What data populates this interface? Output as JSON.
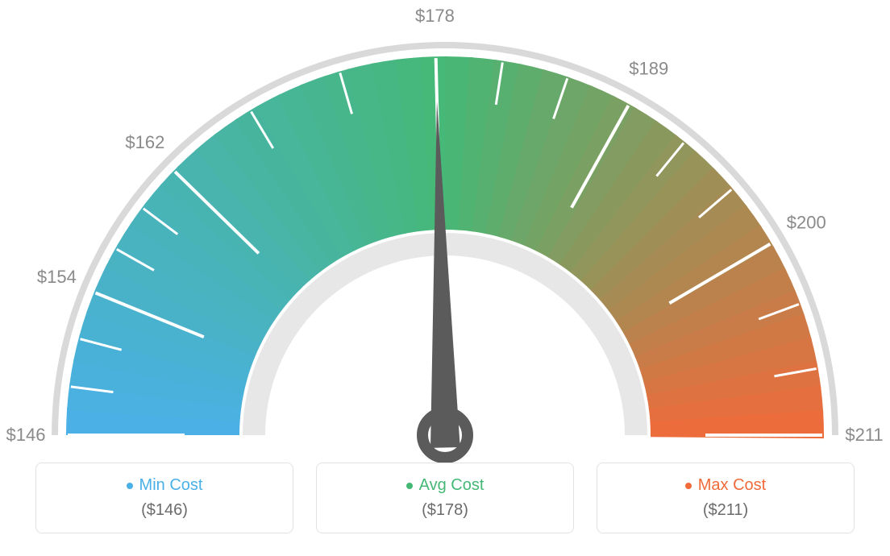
{
  "gauge": {
    "type": "gauge",
    "min_value": 146,
    "max_value": 211,
    "avg_value": 178,
    "tick_values": [
      146,
      154,
      162,
      178,
      189,
      200,
      211
    ],
    "tick_labels": [
      "$146",
      "$154",
      "$162",
      "$178",
      "$189",
      "$200",
      "$211"
    ],
    "color_start": "#4ab0e8",
    "color_mid": "#46b876",
    "color_end": "#f06a3a",
    "outer_ring_color": "#d9d9d9",
    "inner_ring_color": "#e7e7e7",
    "tick_color_major": "#ffffff",
    "tick_color_minor": "#ffffff",
    "tick_label_color": "#8a8a8a",
    "tick_label_fontsize": 22,
    "needle_color": "#5b5b5b",
    "needle_ring_color": "#5b5b5b",
    "background_color": "#ffffff",
    "outer_radius": 470,
    "inner_radius": 255,
    "thin_ring_width": 8
  },
  "legend": {
    "cards": [
      {
        "label": "Min Cost",
        "value": "($146)",
        "color": "#4ab0e8"
      },
      {
        "label": "Avg Cost",
        "value": "($178)",
        "color": "#46b876"
      },
      {
        "label": "Max Cost",
        "value": "($211)",
        "color": "#f06a3a"
      }
    ],
    "card_border_color": "#e2e2e2",
    "card_border_radius": 8,
    "label_fontsize": 20,
    "value_fontsize": 20,
    "value_color": "#6b6b6b"
  }
}
